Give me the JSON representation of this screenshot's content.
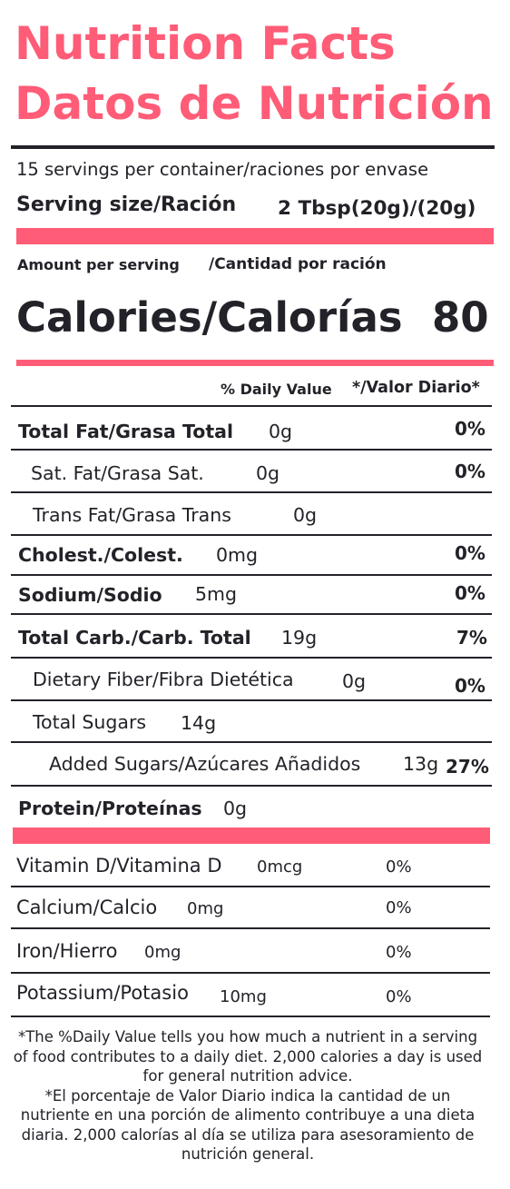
{
  "colors": {
    "accent": "#ff5c77",
    "text": "#222229",
    "rule": "#222229"
  },
  "title": {
    "english": "Nutrition Facts",
    "spanish": "Datos de Nutrición"
  },
  "servings_per_container": "15 servings per container/raciones por envase",
  "serving_size": {
    "label_en": "Serving size",
    "label_es": "/Ración",
    "value": "2 Tbsp(20g)/(20g)"
  },
  "amount_per_serving": {
    "en": "Amount per serving",
    "es": "/Cantidad por ración"
  },
  "calories": {
    "label": "Calories/Calorías",
    "value": "80"
  },
  "daily_value_header": {
    "en": "% Daily Value",
    "es": "*/Valor Diario*"
  },
  "nutrients": [
    {
      "label": "Total Fat",
      "label_es": "/Grasa Total",
      "amount": "0g",
      "dv": "0%"
    },
    {
      "label": "Sat. Fat/Grasa Sat.",
      "amount": "0g",
      "dv": "0%"
    },
    {
      "label": "Trans Fat/Grasa Trans",
      "amount": "0g"
    },
    {
      "label": "Cholest.",
      "label_es": "/Colest.",
      "amount": "0mg",
      "dv": "0%"
    },
    {
      "label": "Sodium/Sodio",
      "amount": "5mg",
      "dv": "0%"
    },
    {
      "label": "Total Carb",
      "label_es": "./Carb. Total",
      "amount": "19g",
      "dv": "7%"
    },
    {
      "label": "Dietary Fiber/Fibra Dietética",
      "amount": "0g",
      "dv": "0%"
    },
    {
      "label": "Total Sugars",
      "amount": "14g"
    },
    {
      "label": "Added Sugars/Azúcares Añadidos",
      "amount": "13g",
      "dv": "27%"
    },
    {
      "label": "Protein/Proteínas",
      "amount": "0g"
    }
  ],
  "vitamins": [
    {
      "label": "Vitamin D/Vitamina D",
      "amount": "0mcg",
      "dv": "0%"
    },
    {
      "label": "Calcium/Calcio",
      "amount": "0mg",
      "dv": "0%"
    },
    {
      "label": "Iron/Hierro",
      "amount": "0mg",
      "dv": "0%"
    },
    {
      "label": "Potassium/Potasio",
      "amount": "10mg",
      "dv": "0%"
    }
  ],
  "footnote": {
    "en": "*The %Daily Value tells you how much a nutrient in a serving of food contributes to a daily diet. 2,000 calories a day is used for general nutrition advice.",
    "es": "*El porcentaje de Valor Diario indica la cantidad de un nutriente en una porción de alimento contribuye a una dieta diaria. 2,000 calorías al día se utiliza para asesoramiento de nutrición general."
  }
}
